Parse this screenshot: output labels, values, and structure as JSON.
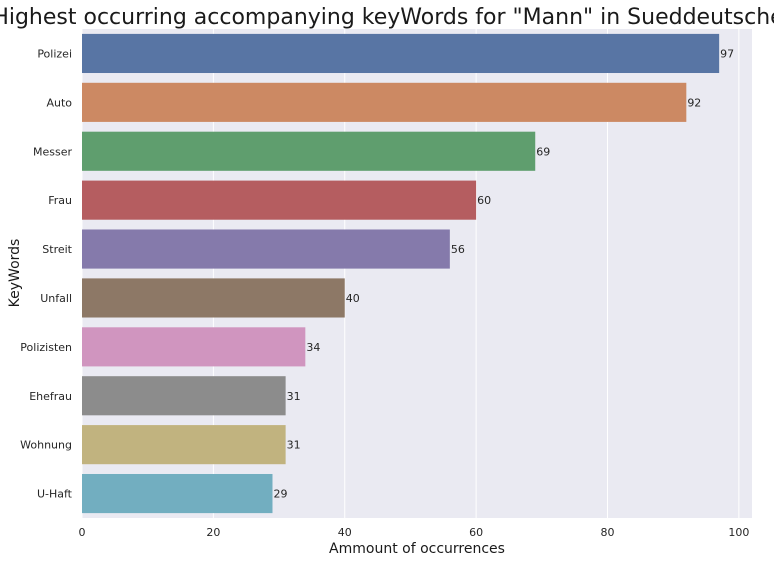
{
  "chart_data": {
    "type": "bar",
    "orientation": "horizontal",
    "title": "Highest occurring accompanying keyWords for \"Mann\" in Sueddeutsche",
    "xlabel": "Ammount of occurrences",
    "ylabel": "KeyWords",
    "xlim": [
      0,
      102
    ],
    "x_ticks": [
      0,
      20,
      40,
      60,
      80,
      100
    ],
    "grid": true,
    "categories": [
      "Polizei",
      "Auto",
      "Messer",
      "Frau",
      "Streit",
      "Unfall",
      "Polizisten",
      "Ehefrau",
      "Wohnung",
      "U-Haft"
    ],
    "values": [
      97,
      92,
      69,
      60,
      56,
      40,
      34,
      31,
      31,
      29
    ],
    "colors": [
      "#5875a4",
      "#cc8963",
      "#5f9e6e",
      "#b55d60",
      "#857aab",
      "#8d7866",
      "#d095bf",
      "#8c8c8c",
      "#c1b37f",
      "#72aec0"
    ],
    "background": "#eaeaf2"
  }
}
